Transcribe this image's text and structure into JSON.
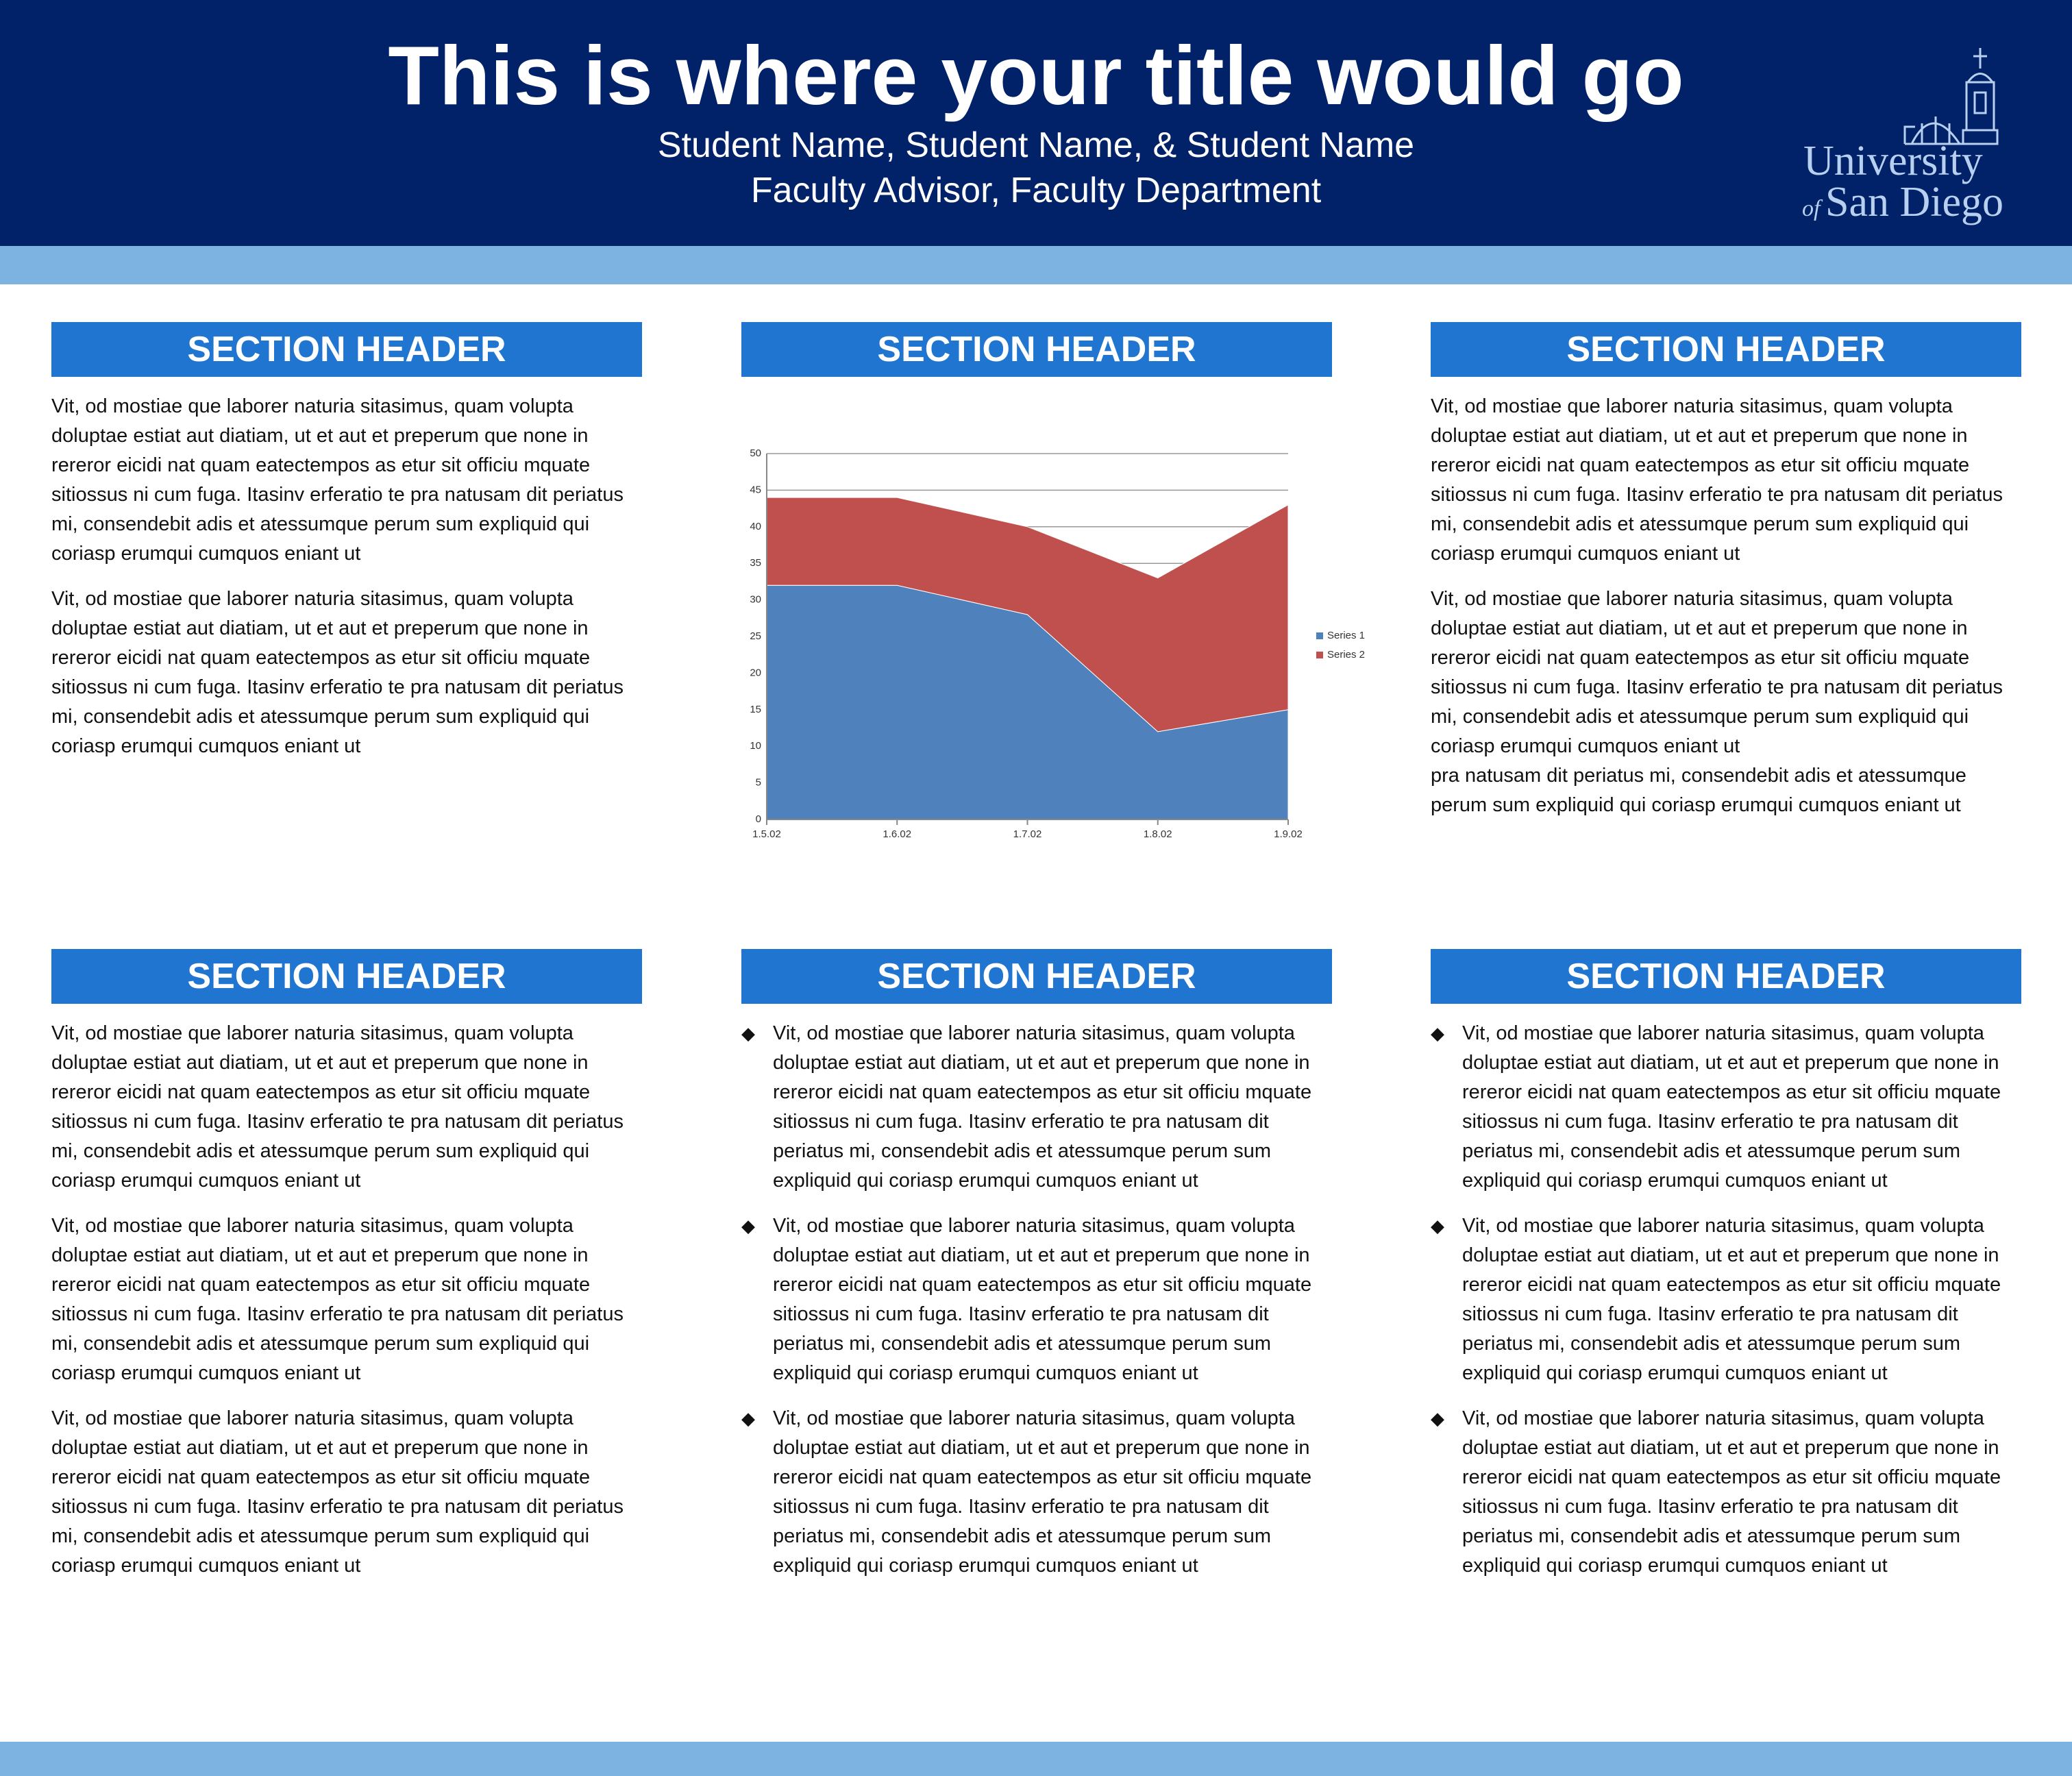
{
  "header": {
    "title": "This is where your title would go",
    "authors": "Student Name, Student Name, & Student Name",
    "advisor": "Faculty Advisor,  Faculty Department",
    "logo_line1": "University",
    "logo_line2_small": "of",
    "logo_line2": "San Diego"
  },
  "sections": [
    {
      "header": "SECTION HEADER",
      "paragraphs": [
        "Vit, od mostiae que laborer naturia sitasimus, quam volupta doluptae estiat aut diatiam, ut et aut et preperum que none in rereror eicidi nat quam eatectempos as etur sit officiu mquate sitiossus ni cum fuga. Itasinv erferatio te pra natusam dit periatus mi, consendebit adis et atessumque perum sum expliquid qui coriasp erumqui cumquos eniant ut",
        "Vit, od mostiae que laborer naturia sitasimus, quam volupta doluptae estiat aut diatiam, ut et aut et preperum que none in rereror eicidi nat quam eatectempos as etur sit officiu mquate sitiossus ni cum fuga. Itasinv erferatio te pra natusam dit periatus mi, consendebit adis et atessumque perum sum expliquid qui coriasp erumqui cumquos eniant ut"
      ]
    },
    {
      "header": "SECTION HEADER"
    },
    {
      "header": "SECTION HEADER",
      "paragraphs": [
        "Vit, od mostiae que laborer naturia sitasimus, quam volupta doluptae estiat aut diatiam, ut et aut et preperum que none in rereror eicidi nat quam eatectempos as etur sit officiu mquate sitiossus ni cum fuga. Itasinv erferatio te pra natusam dit periatus mi, consendebit adis et atessumque perum sum expliquid qui coriasp erumqui cumquos eniant ut",
        "Vit, od mostiae que laborer naturia sitasimus, quam volupta doluptae estiat aut diatiam, ut et aut et preperum que none in rereror eicidi nat quam eatectempos as etur sit officiu mquate sitiossus ni cum fuga. Itasinv erferatio te pra natusam dit periatus mi, consendebit adis et atessumque perum sum expliquid qui coriasp erumqui cumquos eniant ut",
        "pra natusam dit periatus mi, consendebit adis et atessumque perum sum expliquid qui coriasp erumqui cumquos eniant ut"
      ]
    },
    {
      "header": "SECTION HEADER",
      "paragraphs": [
        "Vit, od mostiae que laborer naturia sitasimus, quam volupta doluptae estiat aut diatiam, ut et aut et preperum que none in rereror eicidi nat quam eatectempos as etur sit officiu mquate sitiossus ni cum fuga. Itasinv erferatio te pra natusam dit periatus mi, consendebit adis et atessumque perum sum expliquid qui coriasp erumqui cumquos eniant ut",
        "Vit, od mostiae que laborer naturia sitasimus, quam volupta doluptae estiat aut diatiam, ut et aut et preperum que none in rereror eicidi nat quam eatectempos as etur sit officiu mquate sitiossus ni cum fuga. Itasinv erferatio te pra natusam dit periatus mi, consendebit adis et atessumque perum sum expliquid qui coriasp erumqui cumquos eniant ut",
        "Vit, od mostiae que laborer naturia sitasimus, quam volupta doluptae estiat aut diatiam, ut et aut et preperum que none in rereror eicidi nat quam eatectempos as etur sit officiu mquate sitiossus ni cum fuga. Itasinv erferatio te pra natusam dit periatus mi, consendebit adis et atessumque perum sum expliquid qui coriasp erumqui cumquos eniant ut"
      ]
    },
    {
      "header": "SECTION HEADER",
      "paragraphs": [
        "Vit, od mostiae que laborer naturia sitasimus, quam volupta doluptae estiat aut diatiam, ut et aut et preperum que none in rereror eicidi nat quam eatectempos as etur sit officiu mquate sitiossus ni cum fuga. Itasinv erferatio te pra natusam dit periatus mi, consendebit adis et atessumque perum sum expliquid qui coriasp erumqui cumquos eniant ut",
        "Vit, od mostiae que laborer naturia sitasimus, quam volupta doluptae estiat aut diatiam, ut et aut et preperum que none in rereror eicidi nat quam eatectempos as etur sit officiu mquate sitiossus ni cum fuga. Itasinv erferatio te pra natusam dit periatus mi, consendebit adis et atessumque perum sum expliquid qui coriasp erumqui cumquos eniant ut",
        "Vit, od mostiae que laborer naturia sitasimus, quam volupta doluptae estiat aut diatiam, ut et aut et preperum que none in rereror eicidi nat quam eatectempos as etur sit officiu mquate sitiossus ni cum fuga. Itasinv erferatio te pra natusam dit periatus mi, consendebit adis et atessumque perum sum expliquid qui coriasp erumqui cumquos eniant ut"
      ]
    },
    {
      "header": "SECTION HEADER",
      "paragraphs": [
        "Vit, od mostiae que laborer naturia sitasimus, quam volupta doluptae estiat aut diatiam, ut et aut et preperum que none in rereror eicidi nat quam eatectempos as etur sit officiu mquate sitiossus ni cum fuga. Itasinv erferatio te pra natusam dit periatus mi, consendebit adis et atessumque perum sum expliquid qui coriasp erumqui cumquos eniant ut",
        "Vit, od mostiae que laborer naturia sitasimus, quam volupta doluptae estiat aut diatiam, ut et aut et preperum que none in rereror eicidi nat quam eatectempos as etur sit officiu mquate sitiossus ni cum fuga. Itasinv erferatio te pra natusam dit periatus mi, consendebit adis et atessumque perum sum expliquid qui coriasp erumqui cumquos eniant ut",
        "Vit, od mostiae que laborer naturia sitasimus, quam volupta doluptae estiat aut diatiam, ut et aut et preperum que none in rereror eicidi nat quam eatectempos as etur sit officiu mquate sitiossus ni cum fuga. Itasinv erferatio te pra natusam dit periatus mi, consendebit adis et atessumque perum sum expliquid qui coriasp erumqui cumquos eniant ut"
      ]
    }
  ],
  "chart_data": {
    "type": "stacked-area",
    "categories": [
      "1.5.02",
      "1.6.02",
      "1.7.02",
      "1.8.02",
      "1.9.02"
    ],
    "series": [
      {
        "name": "Series 1",
        "color": "#4f81bd",
        "values": [
          32,
          32,
          28,
          12,
          15
        ]
      },
      {
        "name": "Series 2",
        "color": "#c0504d",
        "values": [
          12,
          12,
          12,
          21,
          28
        ]
      }
    ],
    "ylim": [
      0,
      50
    ],
    "yticks": [
      0,
      5,
      10,
      15,
      20,
      25,
      30,
      35,
      40,
      45,
      50
    ],
    "grid": true,
    "legend": "right"
  }
}
